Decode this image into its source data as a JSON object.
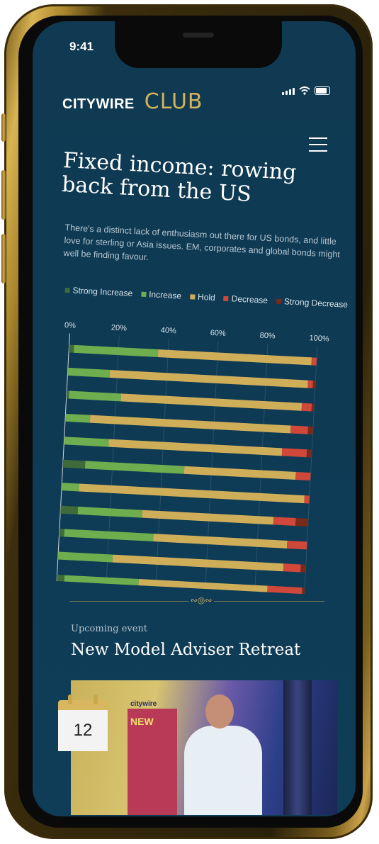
{
  "status": {
    "time": "9:41"
  },
  "brand": {
    "name": "CITYWIRE",
    "club": "CLUB"
  },
  "article": {
    "title": "Fixed income: rowing back from the US",
    "subtitle": "There's a distinct lack of enthusiasm out there for US bonds, and little love for sterling or Asia issues. EM, corporates and global bonds might well be finding favour."
  },
  "legend": [
    {
      "label": "Strong Increase",
      "color": "#3f6b3a"
    },
    {
      "label": "Increase",
      "color": "#6fae4f"
    },
    {
      "label": "Hold",
      "color": "#cfae5a"
    },
    {
      "label": "Decrease",
      "color": "#d0483a"
    },
    {
      "label": "Strong Decrease",
      "color": "#7a2a1a"
    }
  ],
  "chart_data": {
    "type": "bar",
    "orientation": "horizontal-stacked-percent",
    "x_ticks": [
      "0%",
      "20%",
      "40%",
      "60%",
      "80%",
      "100%"
    ],
    "xlim": [
      0,
      100
    ],
    "grid": true,
    "series": [
      {
        "name": "Strong Increase",
        "values": [
          2,
          0,
          1,
          0,
          0,
          9,
          0,
          7,
          2,
          0,
          3
        ]
      },
      {
        "name": "Increase",
        "values": [
          34,
          17,
          21,
          10,
          18,
          40,
          7,
          26,
          36,
          22,
          30
        ]
      },
      {
        "name": "Hold",
        "values": [
          62,
          80,
          73,
          81,
          70,
          45,
          91,
          53,
          54,
          69,
          52
        ]
      },
      {
        "name": "Decrease",
        "values": [
          2,
          2,
          4,
          7,
          10,
          6,
          2,
          9,
          8,
          7,
          14
        ]
      },
      {
        "name": "Strong Decrease",
        "values": [
          0,
          1,
          1,
          2,
          2,
          0,
          0,
          5,
          0,
          2,
          1
        ]
      }
    ]
  },
  "event": {
    "label": "Upcoming event",
    "title": "New Model Adviser Retreat",
    "day": "12",
    "photo_logo": "citywire",
    "photo_banner": "NEW"
  }
}
